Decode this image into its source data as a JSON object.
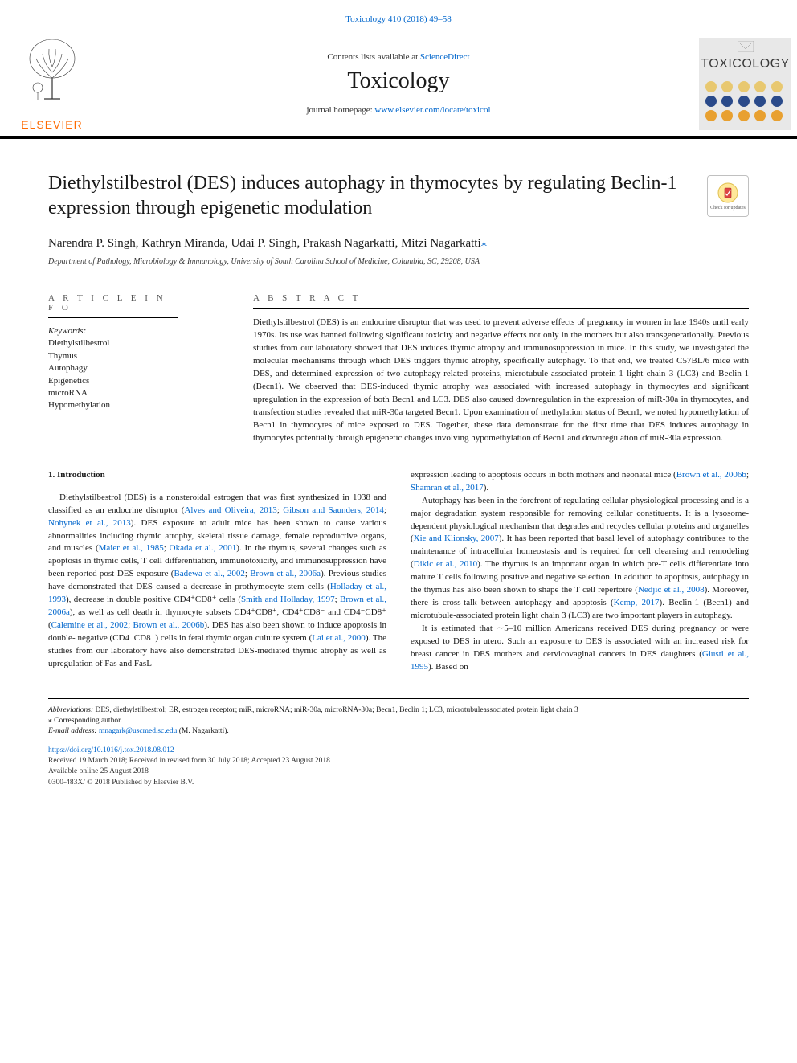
{
  "top_link": {
    "prefix": "",
    "journal_ref": "Toxicology 410 (2018) 49–58"
  },
  "masthead": {
    "contents_prefix": "Contents lists available at ",
    "contents_link": "ScienceDirect",
    "journal_name": "Toxicology",
    "homepage_prefix": "journal homepage: ",
    "homepage_link": "www.elsevier.com/locate/toxicol",
    "publisher_name": "ELSEVIER",
    "cover_title": "TOXICOLOGY",
    "cover_dot_colors": [
      "#e8c870",
      "#e8c870",
      "#e8c870",
      "#e8c870",
      "#e8c870",
      "#2a4a8a",
      "#2a4a8a",
      "#2a4a8a",
      "#2a4a8a",
      "#2a4a8a",
      "#e8a030",
      "#e8a030",
      "#e8a030",
      "#e8a030",
      "#e8a030"
    ]
  },
  "article": {
    "title": "Diethylstilbestrol (DES) induces autophagy in thymocytes by regulating Beclin-1 expression through epigenetic modulation",
    "check_updates": "Check for updates",
    "authors": "Narendra P. Singh, Kathryn Miranda, Udai P. Singh, Prakash Nagarkatti, Mitzi Nagarkatti",
    "corr_marker": "⁎",
    "affiliation": "Department of Pathology, Microbiology & Immunology, University of South Carolina School of Medicine, Columbia, SC, 29208, USA"
  },
  "info": {
    "header": "A R T I C L E  I N F O",
    "keywords_label": "Keywords:",
    "keywords": [
      "Diethylstilbestrol",
      "Thymus",
      "Autophagy",
      "Epigenetics",
      "microRNA",
      "Hypomethylation"
    ]
  },
  "abstract": {
    "header": "A B S T R A C T",
    "text": "Diethylstilbestrol (DES) is an endocrine disruptor that was used to prevent adverse effects of pregnancy in women in late 1940s until early 1970s. Its use was banned following significant toxicity and negative effects not only in the mothers but also transgenerationally. Previous studies from our laboratory showed that DES induces thymic atrophy and immunosuppression in mice. In this study, we investigated the molecular mechanisms through which DES triggers thymic atrophy, specifically autophagy. To that end, we treated C57BL/6 mice with DES, and determined expression of two autophagy-related proteins, microtubule-associated protein-1 light chain 3 (LC3) and Beclin-1 (Becn1). We observed that DES-induced thymic atrophy was associated with increased autophagy in thymocytes and significant upregulation in the expression of both Becn1 and LC3. DES also caused downregulation in the expression of miR-30a in thymocytes, and transfection studies revealed that miR-30a targeted Becn1. Upon examination of methylation status of Becn1, we noted hypomethylation of Becn1 in thymocytes of mice exposed to DES. Together, these data demonstrate for the first time that DES induces autophagy in thymocytes potentially through epigenetic changes involving hypomethylation of Becn1 and downregulation of miR-30a expression."
  },
  "body": {
    "section1_title": "1. Introduction",
    "col1_p1_a": "Diethylstilbestrol (DES) is a nonsteroidal estrogen that was first synthesized in 1938 and classified as an endocrine disruptor (",
    "col1_p1_r1": "Alves and Oliveira, 2013",
    "col1_p1_b": "; ",
    "col1_p1_r2": "Gibson and Saunders, 2014",
    "col1_p1_c": "; ",
    "col1_p1_r3": "Nohynek et al., 2013",
    "col1_p1_d": "). DES exposure to adult mice has been shown to cause various abnormalities including thymic atrophy, skeletal tissue damage, female reproductive organs, and muscles (",
    "col1_p1_r4": "Maier et al., 1985",
    "col1_p1_e": "; ",
    "col1_p1_r5": "Okada et al., 2001",
    "col1_p1_f": "). In the thymus, several changes such as apoptosis in thymic cells, T cell differentiation, immunotoxicity, and immunosuppression have been reported post-DES exposure (",
    "col1_p1_r6": "Badewa et al., 2002",
    "col1_p1_g": "; ",
    "col1_p1_r7": "Brown et al., 2006a",
    "col1_p1_h": "). Previous studies have demonstrated that DES caused a decrease in prothymocyte stem cells (",
    "col1_p1_r8": "Holladay et al., 1993",
    "col1_p1_i": "), decrease in double positive CD4⁺CD8⁺ cells (",
    "col1_p1_r9": "Smith and Holladay, 1997",
    "col1_p1_j": "; ",
    "col1_p1_r10": "Brown et al., 2006a",
    "col1_p1_k": "), as well as cell death in thymocyte subsets CD4⁺CD8⁺, CD4⁺CD8⁻ and CD4⁻CD8⁺ (",
    "col1_p1_r11": "Calemine et al., 2002",
    "col1_p1_l": "; ",
    "col1_p1_r12": "Brown et al., 2006b",
    "col1_p1_m": "). DES has also been shown to induce apoptosis in double- negative (CD4⁻CD8⁻) cells in fetal thymic organ culture system (",
    "col1_p1_r13": "Lai et al., 2000",
    "col1_p1_n": "). The studies from our laboratory have also demonstrated DES-mediated thymic atrophy as well as upregulation of Fas and FasL",
    "col2_p1_a": "expression leading to apoptosis occurs in both mothers and neonatal mice (",
    "col2_p1_r1": "Brown et al., 2006b",
    "col2_p1_b": "; ",
    "col2_p1_r2": "Shamran et al., 2017",
    "col2_p1_c": ").",
    "col2_p2_a": "Autophagy has been in the forefront of regulating cellular physiological processing and is a major degradation system responsible for removing cellular constituents. It is a lysosome-dependent physiological mechanism that degrades and recycles cellular proteins and organelles (",
    "col2_p2_r1": "Xie and Klionsky, 2007",
    "col2_p2_b": "). It has been reported that basal level of autophagy contributes to the maintenance of intracellular homeostasis and is required for cell cleansing and remodeling (",
    "col2_p2_r2": "Dikic et al., 2010",
    "col2_p2_c": "). The thymus is an important organ in which pre-T cells differentiate into mature T cells following positive and negative selection. In addition to apoptosis, autophagy in the thymus has also been shown to shape the T cell repertoire (",
    "col2_p2_r3": "Nedjic et al., 2008",
    "col2_p2_d": "). Moreover, there is cross-talk between autophagy and apoptosis (",
    "col2_p2_r4": "Kemp, 2017",
    "col2_p2_e": "). Beclin-1 (Becn1) and microtubule-associated protein light chain 3 (LC3) are two important players in autophagy.",
    "col2_p3_a": "It is estimated that ∼5–10 million Americans received DES during pregnancy or were exposed to DES in utero. Such an exposure to DES is associated with an increased risk for breast cancer in DES mothers and cervicovaginal cancers in DES daughters (",
    "col2_p3_r1": "Giusti et al., 1995",
    "col2_p3_b": "). Based on"
  },
  "footer": {
    "abbrev_label": "Abbreviations:",
    "abbrev_text": " DES, diethylstilbestrol; ER, estrogen receptor; miR, microRNA; miR-30a, microRNA-30a; Becn1, Beclin 1; LC3, microtubuleassociated protein light chain 3",
    "corr_marker": "⁎",
    "corr_text": " Corresponding author.",
    "email_label": "E-mail address: ",
    "email": "mnagark@uscmed.sc.edu",
    "email_suffix": " (M. Nagarkatti).",
    "doi": "https://doi.org/10.1016/j.tox.2018.08.012",
    "received": "Received 19 March 2018; Received in revised form 30 July 2018; Accepted 23 August 2018",
    "available": "Available online 25 August 2018",
    "copyright": "0300-483X/ © 2018 Published by Elsevier B.V."
  },
  "colors": {
    "link": "#0066cc",
    "elsevier_orange": "#ff6a00",
    "text": "#1a1a1a",
    "gray": "#555555"
  }
}
